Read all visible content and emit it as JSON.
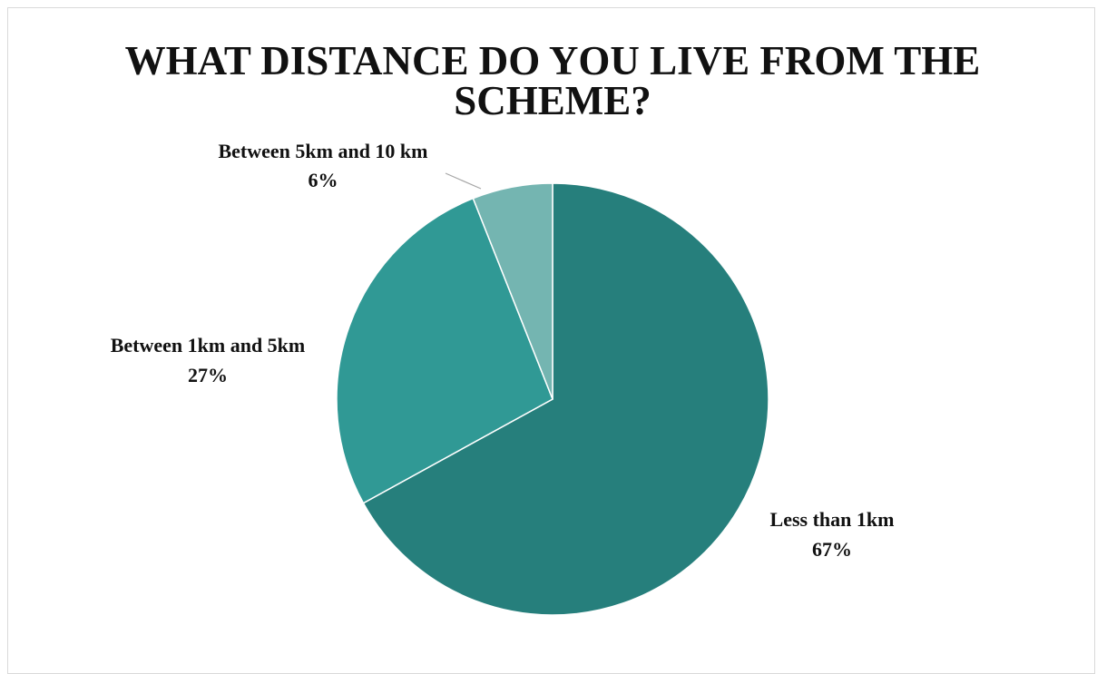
{
  "chart_data": {
    "type": "pie",
    "title": "WHAT DISTANCE DO YOU LIVE FROM THE SCHEME?",
    "title_lines": [
      "WHAT DISTANCE DO YOU LIVE FROM THE",
      "SCHEME?"
    ],
    "categories": [
      "Less than 1km",
      "Between 1km and 5km",
      "Between 5km and 10 km"
    ],
    "values": [
      67,
      27,
      6
    ],
    "value_labels": [
      "67%",
      "27%",
      "6%"
    ],
    "start_angle_deg": 0,
    "direction": "clockwise",
    "legend": "none",
    "data_labels": "outside",
    "colors": [
      "#267F7C",
      "#309995",
      "#74B5B1"
    ]
  }
}
